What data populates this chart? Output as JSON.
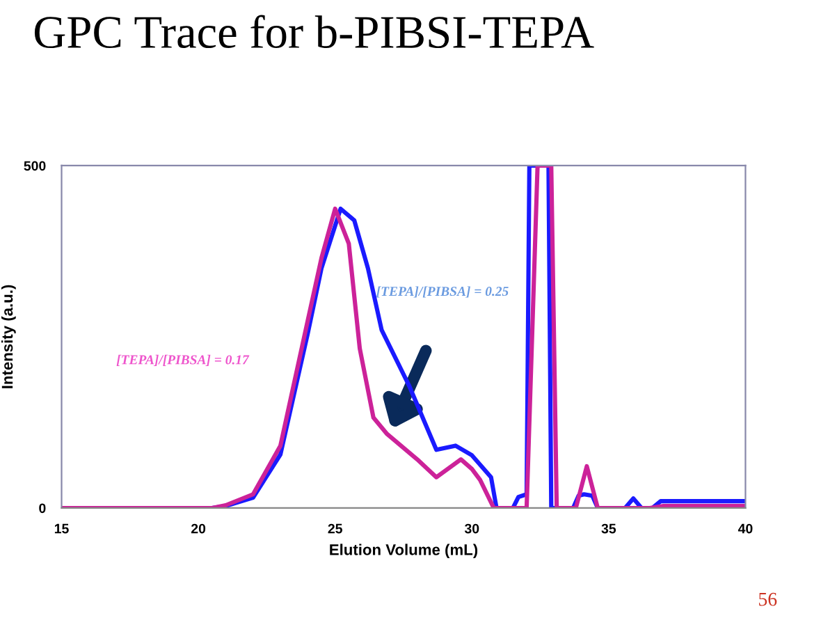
{
  "chart_data": {
    "type": "line",
    "title": "GPC Trace for b-PIBSI-TEPA",
    "xlabel": "Elution Volume (mL)",
    "ylabel": "Intensity (a.u.)",
    "xlim": [
      15,
      40
    ],
    "xticks": [
      15,
      20,
      25,
      30,
      35,
      40
    ],
    "ylim": [
      0,
      500
    ],
    "yticks": [
      0,
      500
    ],
    "grid": false,
    "legend": false,
    "annotations": [
      "[TEPA]/[PIBSA] = 0.25",
      "[TEPA]/[PIBSA] = 0.17",
      "56"
    ],
    "series": [
      {
        "color": "#1a1aff",
        "x": [
          15,
          20.5,
          21,
          22,
          23,
          24,
          24.5,
          25.2,
          25.7,
          26.2,
          26.7,
          27.7,
          28.7,
          29.4,
          30.0,
          30.7,
          30.9,
          31.5,
          31.7,
          32.0,
          32.1,
          32.8,
          32.9,
          33.7,
          33.9,
          34.1,
          34.4,
          34.6,
          35.6,
          35.9,
          36.2,
          36.6,
          36.9,
          40
        ],
        "values": [
          0,
          0,
          3,
          15,
          78,
          255,
          350,
          437,
          420,
          350,
          260,
          179,
          85,
          91,
          77,
          45,
          0,
          0,
          16,
          20,
          500,
          500,
          0,
          0,
          18,
          20,
          18,
          0,
          0,
          14,
          0,
          0,
          10,
          10
        ]
      },
      {
        "color": "#cc2299",
        "x": [
          15,
          20.5,
          21,
          22,
          23,
          24,
          24.5,
          25.0,
          25.5,
          25.9,
          26.4,
          26.9,
          28.0,
          28.7,
          29.6,
          30.0,
          30.3,
          30.8,
          32.0,
          32.4,
          32.9,
          33.1,
          33.8,
          34.2,
          34.6,
          36.5,
          37,
          40
        ],
        "values": [
          0,
          0,
          4,
          20,
          91,
          274,
          365,
          437,
          386,
          233,
          132,
          108,
          71,
          45,
          71,
          57,
          41,
          0,
          0,
          500,
          500,
          0,
          0,
          61,
          0,
          0,
          3,
          3
        ]
      }
    ]
  }
}
